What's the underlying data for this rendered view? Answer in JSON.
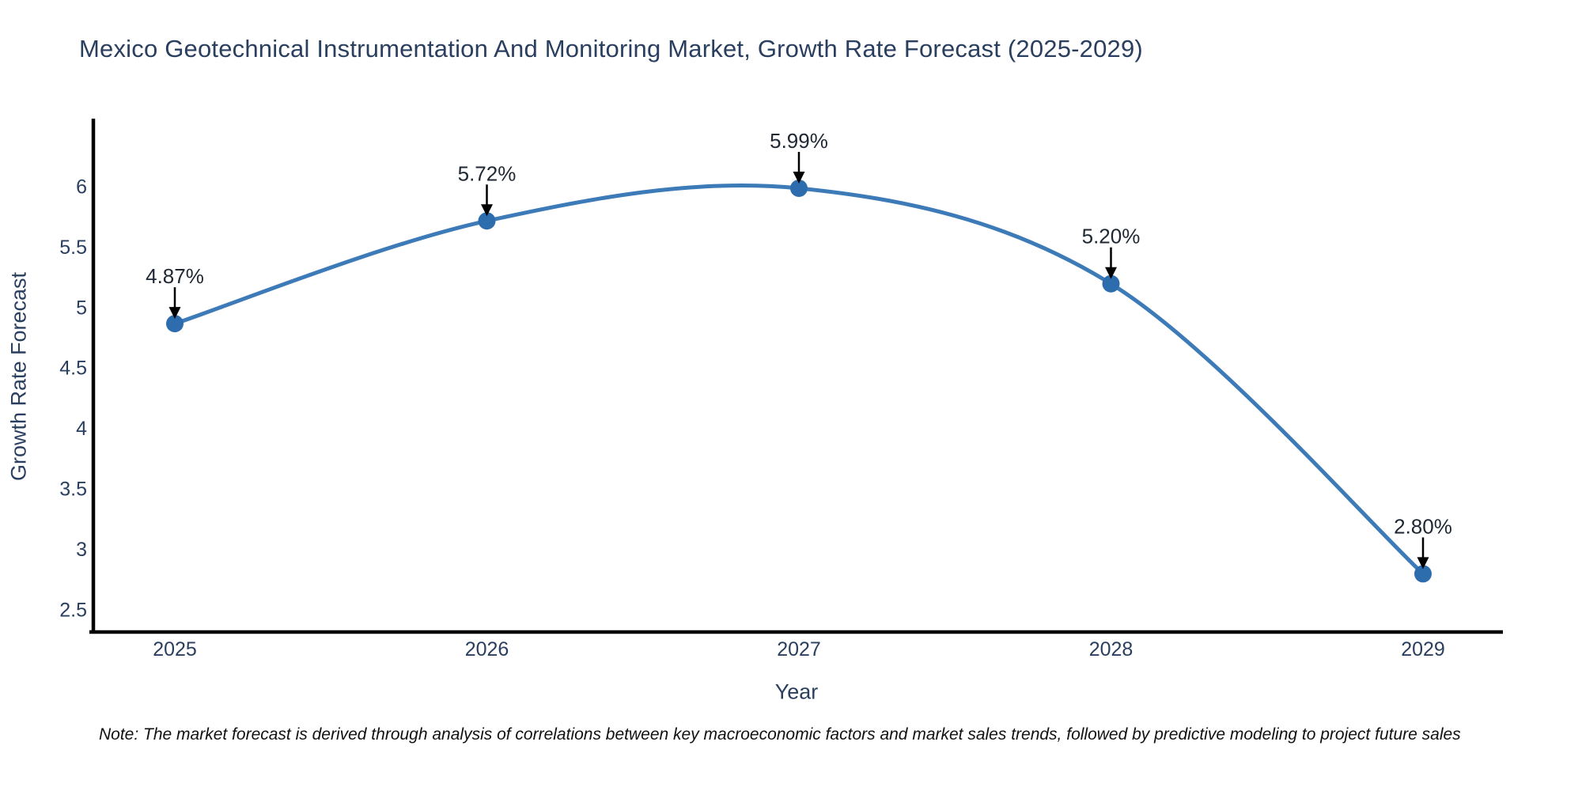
{
  "title": "Mexico Geotechnical Instrumentation And Monitoring Market, Growth Rate Forecast (2025-2029)",
  "note": "Note: The market forecast is derived through analysis of correlations between key macroeconomic factors and market sales trends, followed by predictive modeling to project future sales",
  "chart_data": {
    "type": "line",
    "title": "Mexico Geotechnical Instrumentation And Monitoring Market, Growth Rate Forecast (2025-2029)",
    "xlabel": "Year",
    "ylabel": "Growth Rate Forecast",
    "x": [
      2025,
      2026,
      2027,
      2028,
      2029
    ],
    "values": [
      4.87,
      5.72,
      5.99,
      5.2,
      2.8
    ],
    "point_labels": [
      "4.87%",
      "5.72%",
      "5.99%",
      "5.20%",
      "2.80%"
    ],
    "y_ticks": [
      2.5,
      3,
      3.5,
      4,
      4.5,
      5,
      5.5,
      6
    ],
    "ylim": [
      2.3,
      6.6
    ],
    "xlim": [
      2024.74,
      2029.26
    ],
    "grid": false,
    "legend": "none",
    "line_shape": "spline",
    "colors": {
      "line": "#3c7ab8",
      "marker": "#2e6dad",
      "axis": "#000000",
      "text": "#2a3f5f",
      "annotation_text": "#1f2733",
      "arrow": "#000000",
      "background": "#ffffff"
    }
  }
}
